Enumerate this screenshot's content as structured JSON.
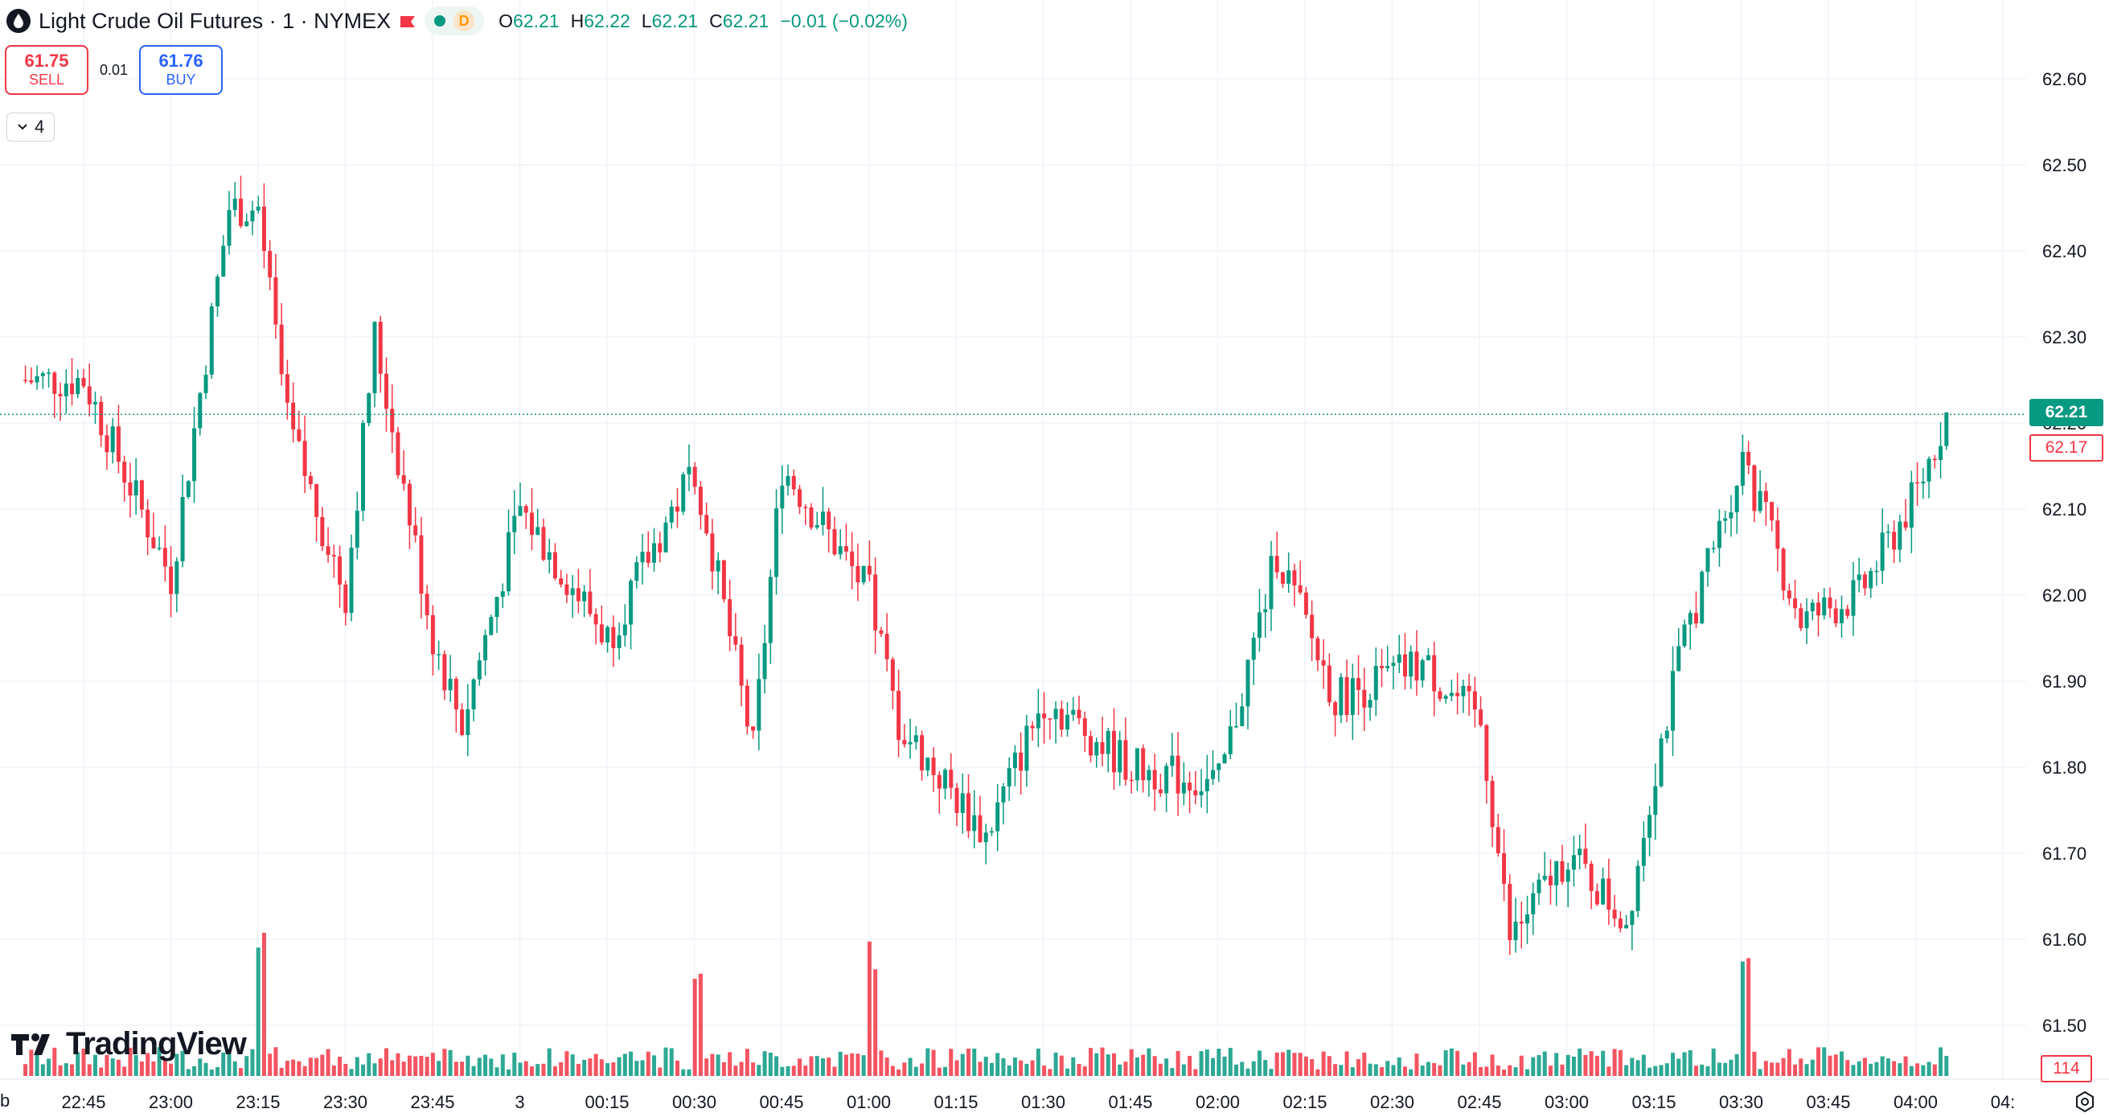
{
  "legend": {
    "title": "Light Crude Oil Futures · 1 · NYMEX",
    "interval_badge": "D",
    "ohlc": [
      {
        "key": "O",
        "value": "62.21"
      },
      {
        "key": "H",
        "value": "62.22"
      },
      {
        "key": "L",
        "value": "62.21"
      },
      {
        "key": "C",
        "value": "62.21"
      }
    ],
    "change": "−0.01 (−0.02%)",
    "symbol_icon": "oil-drop-icon",
    "flag_icon": "flag-icon"
  },
  "trade": {
    "sell_price": "61.75",
    "sell_label": "SELL",
    "spread": "0.01",
    "buy_price": "61.76",
    "buy_label": "BUY"
  },
  "indicators_toggle": {
    "count": "4"
  },
  "price_tags": {
    "last": "62.21",
    "bid": "62.17",
    "volume": "114"
  },
  "branding": {
    "logo_text": "TradingView"
  },
  "axis_edge_label": "b",
  "colors": {
    "up": "#089981",
    "down": "#f23645",
    "grid": "#f0f3fa",
    "axis_text": "#131722"
  },
  "chart_data": {
    "type": "candlestick",
    "y_ticks": [
      "62.60",
      "62.50",
      "62.40",
      "62.30",
      "62.20",
      "62.10",
      "62.00",
      "61.90",
      "61.80",
      "61.70",
      "61.60",
      "61.50"
    ],
    "ylim": [
      61.46,
      62.66
    ],
    "x_ticks": [
      "22:45",
      "23:00",
      "23:15",
      "23:30",
      "23:45",
      "3",
      "00:15",
      "00:30",
      "00:45",
      "01:00",
      "01:15",
      "01:30",
      "01:45",
      "02:00",
      "02:15",
      "02:30",
      "02:45",
      "03:00",
      "03:15",
      "03:30",
      "03:45",
      "04:00",
      "04:"
    ],
    "last_price": 62.21,
    "approx_close_path": [
      {
        "time": "22:35",
        "close": 62.25
      },
      {
        "time": "22:45",
        "close": 62.25
      },
      {
        "time": "23:00",
        "close": 62.02
      },
      {
        "time": "23:10",
        "close": 62.45
      },
      {
        "time": "23:15",
        "close": 62.45
      },
      {
        "time": "23:20",
        "close": 62.2
      },
      {
        "time": "23:30",
        "close": 62.0
      },
      {
        "time": "23:35",
        "close": 62.3
      },
      {
        "time": "23:45",
        "close": 61.95
      },
      {
        "time": "23:50",
        "close": 61.85
      },
      {
        "time": "00:00",
        "close": 62.1
      },
      {
        "time": "00:15",
        "close": 61.95
      },
      {
        "time": "00:30",
        "close": 62.15
      },
      {
        "time": "00:40",
        "close": 61.82
      },
      {
        "time": "00:45",
        "close": 62.15
      },
      {
        "time": "01:00",
        "close": 62.0
      },
      {
        "time": "01:05",
        "close": 61.85
      },
      {
        "time": "01:20",
        "close": 61.72
      },
      {
        "time": "01:30",
        "close": 61.88
      },
      {
        "time": "01:45",
        "close": 61.8
      },
      {
        "time": "02:00",
        "close": 61.78
      },
      {
        "time": "02:10",
        "close": 62.05
      },
      {
        "time": "02:20",
        "close": 61.88
      },
      {
        "time": "02:35",
        "close": 61.92
      },
      {
        "time": "02:45",
        "close": 61.85
      },
      {
        "time": "02:50",
        "close": 61.6
      },
      {
        "time": "03:00",
        "close": 61.7
      },
      {
        "time": "03:10",
        "close": 61.62
      },
      {
        "time": "03:15",
        "close": 61.8
      },
      {
        "time": "03:20",
        "close": 61.95
      },
      {
        "time": "03:30",
        "close": 62.16
      },
      {
        "time": "03:40",
        "close": 61.97
      },
      {
        "time": "03:50",
        "close": 62.0
      },
      {
        "time": "04:00",
        "close": 62.12
      },
      {
        "time": "04:05",
        "close": 62.21
      }
    ],
    "volume_spikes": [
      {
        "time": "23:15",
        "note": "largest volume bars"
      },
      {
        "time": "00:30"
      },
      {
        "time": "01:00"
      },
      {
        "time": "03:30"
      }
    ]
  }
}
